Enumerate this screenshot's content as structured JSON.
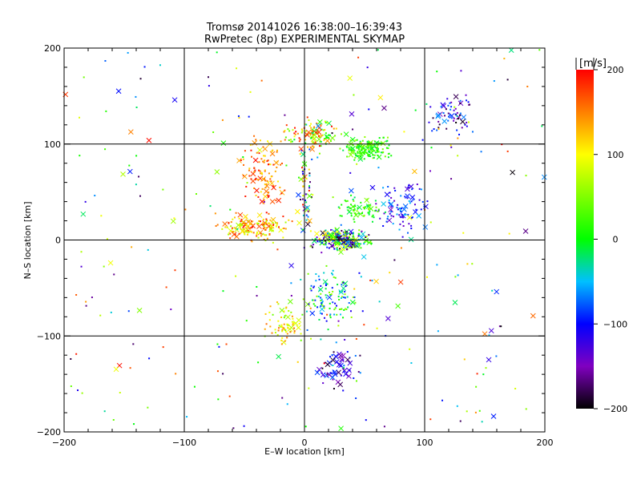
{
  "chart_data": {
    "type": "scatter",
    "title": "Tromsø 20141026 16:38:00–16:39:43",
    "subtitle": "RwPretec (8p) EXPERIMENTAL SKYMAP",
    "xlabel": "E–W location [km]",
    "ylabel": "N–S location [km]",
    "xlim": [
      -200,
      200
    ],
    "ylim": [
      -200,
      200
    ],
    "xticks": [
      -200,
      -100,
      0,
      100,
      200
    ],
    "yticks": [
      -200,
      -100,
      0,
      100,
      200
    ],
    "grid": true,
    "marker_types": [
      "dot",
      "cross"
    ],
    "colorbar": {
      "label": "[m/s]",
      "range": [
        -200,
        200
      ],
      "ticks": [
        200,
        100,
        0,
        -100,
        -200
      ],
      "stops": [
        {
          "value": -200,
          "color": "#000000"
        },
        {
          "value": -150,
          "color": "#8000c0"
        },
        {
          "value": -100,
          "color": "#0000ff"
        },
        {
          "value": -50,
          "color": "#00c0ff"
        },
        {
          "value": 0,
          "color": "#00ff00"
        },
        {
          "value": 100,
          "color": "#ffff00"
        },
        {
          "value": 150,
          "color": "#ff8000"
        },
        {
          "value": 200,
          "color": "#ff0000"
        }
      ]
    },
    "clusters": [
      {
        "x": [
          0,
          60
        ],
        "y": [
          -15,
          15
        ],
        "v": [
          -200,
          120
        ],
        "n": 260,
        "cross_frac": 0.25
      },
      {
        "x": [
          -90,
          0
        ],
        "y": [
          -5,
          30
        ],
        "v": [
          60,
          200
        ],
        "n": 160,
        "cross_frac": 0.15
      },
      {
        "x": [
          25,
          80
        ],
        "y": [
          80,
          110
        ],
        "v": [
          -20,
          60
        ],
        "n": 170,
        "cross_frac": 0.1
      },
      {
        "x": [
          -30,
          40
        ],
        "y": [
          90,
          130
        ],
        "v": [
          -20,
          200
        ],
        "n": 120,
        "cross_frac": 0.15
      },
      {
        "x": [
          50,
          110
        ],
        "y": [
          -5,
          70
        ],
        "v": [
          -150,
          -40
        ],
        "n": 90,
        "cross_frac": 0.2
      },
      {
        "x": [
          90,
          150
        ],
        "y": [
          100,
          160
        ],
        "v": [
          -200,
          -60
        ],
        "n": 60,
        "cross_frac": 0.25
      },
      {
        "x": [
          20,
          70
        ],
        "y": [
          15,
          50
        ],
        "v": [
          -20,
          60
        ],
        "n": 70,
        "cross_frac": 0.1
      },
      {
        "x": [
          5,
          50
        ],
        "y": [
          -170,
          -100
        ],
        "v": [
          -200,
          -60
        ],
        "n": 60,
        "cross_frac": 0.4
      },
      {
        "x": [
          -40,
          10
        ],
        "y": [
          -120,
          -60
        ],
        "v": [
          40,
          160
        ],
        "n": 70,
        "cross_frac": 0.1
      },
      {
        "x": [
          -20,
          60
        ],
        "y": [
          -100,
          -20
        ],
        "v": [
          -120,
          80
        ],
        "n": 120,
        "cross_frac": 0.15
      },
      {
        "x": [
          -60,
          -10
        ],
        "y": [
          10,
          120
        ],
        "v": [
          100,
          200
        ],
        "n": 110,
        "cross_frac": 0.2
      },
      {
        "x": [
          -10,
          10
        ],
        "y": [
          -30,
          140
        ],
        "v": [
          -200,
          200
        ],
        "n": 60,
        "cross_frac": 0.3
      },
      {
        "x": [
          -200,
          200
        ],
        "y": [
          -200,
          200
        ],
        "v": [
          -200,
          200
        ],
        "n": 260,
        "cross_frac": 0.2
      }
    ]
  }
}
